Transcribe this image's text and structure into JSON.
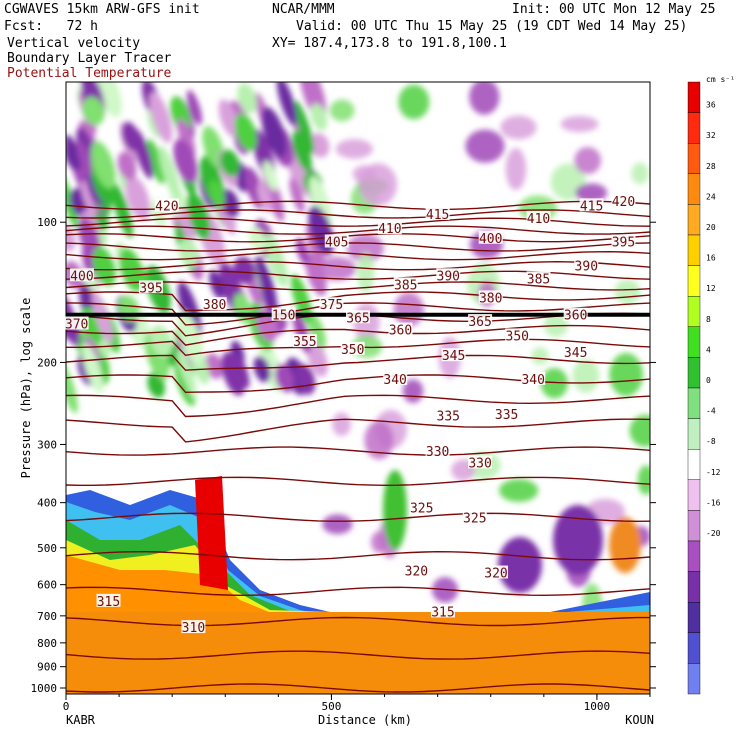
{
  "header": {
    "model": "CGWAVES 15km ARW-GFS init",
    "fcst": "Fcst:   72 h",
    "field1": "Vertical velocity",
    "field2": "Boundary Layer Tracer",
    "field3": "Potential Temperature",
    "org": "NCAR/MMM",
    "xy": "XY= 187.4,173.8 to 191.8,100.1",
    "init": "Init: 00 UTC Mon 12 May 25",
    "valid": "Valid: 00 UTC Thu 15 May 25 (19 CDT Wed 14 May 25)"
  },
  "colors": {
    "theta": "#7a0a0a",
    "terrain": "#f58c0a"
  },
  "chart_data": {
    "type": "heatmap",
    "xlabel": "Distance (km)",
    "ylabel": "Pressure (hPa), log scale",
    "x_ticks": [
      0,
      500,
      1000
    ],
    "x_range": [
      0,
      1100
    ],
    "y_scale": "log",
    "y_range": [
      1000,
      50
    ],
    "y_ticks": [
      100,
      200,
      300,
      400,
      500,
      600,
      700,
      800,
      900,
      1000
    ],
    "left_endpoint": "KABR",
    "right_endpoint": "KOUN",
    "colorbar": {
      "unit": "cm s⁻¹",
      "ticks": [
        36,
        32,
        28,
        24,
        20,
        16,
        12,
        8,
        4,
        0,
        -4,
        -8,
        -12,
        -16,
        -20
      ],
      "colors": [
        "#e80000",
        "#ff2a10",
        "#ff5a10",
        "#ff8a10",
        "#ffaa20",
        "#ffd000",
        "#ffff20",
        "#b0ff20",
        "#40e020",
        "#30c030",
        "#80e080",
        "#c0f0c0",
        "#ffffff",
        "#f0c0f0",
        "#d090d8",
        "#a850c0",
        "#7830a8",
        "#5030a0",
        "#5050d0",
        "#7080f0"
      ]
    },
    "theta_contours": [
      {
        "label": "420",
        "x": 190,
        "p": 92
      },
      {
        "label": "420",
        "x": 1050,
        "p": 90
      },
      {
        "label": "415",
        "x": 700,
        "p": 96
      },
      {
        "label": "415",
        "x": 990,
        "p": 92
      },
      {
        "label": "410",
        "x": 610,
        "p": 103
      },
      {
        "label": "410",
        "x": 890,
        "p": 98
      },
      {
        "label": "405",
        "x": 510,
        "p": 110
      },
      {
        "label": "400",
        "x": 30,
        "p": 130
      },
      {
        "label": "400",
        "x": 800,
        "p": 108
      },
      {
        "label": "395",
        "x": 160,
        "p": 138
      },
      {
        "label": "395",
        "x": 1050,
        "p": 110
      },
      {
        "label": "390",
        "x": 720,
        "p": 130
      },
      {
        "label": "390",
        "x": 980,
        "p": 124
      },
      {
        "label": "385",
        "x": 640,
        "p": 136
      },
      {
        "label": "385",
        "x": 890,
        "p": 132
      },
      {
        "label": "380",
        "x": 280,
        "p": 150
      },
      {
        "label": "380",
        "x": 800,
        "p": 145
      },
      {
        "label": "375",
        "x": 500,
        "p": 150
      },
      {
        "label": "370",
        "x": 20,
        "p": 165
      },
      {
        "label": "365",
        "x": 550,
        "p": 160
      },
      {
        "label": "365",
        "x": 780,
        "p": 163
      },
      {
        "label": "360",
        "x": 630,
        "p": 170
      },
      {
        "label": "360",
        "x": 960,
        "p": 158
      },
      {
        "label": "355",
        "x": 450,
        "p": 180
      },
      {
        "label": "350",
        "x": 540,
        "p": 187
      },
      {
        "label": "350",
        "x": 850,
        "p": 175
      },
      {
        "label": "345",
        "x": 730,
        "p": 193
      },
      {
        "label": "345",
        "x": 960,
        "p": 190
      },
      {
        "label": "340",
        "x": 620,
        "p": 217
      },
      {
        "label": "340",
        "x": 880,
        "p": 217
      },
      {
        "label": "335",
        "x": 720,
        "p": 260
      },
      {
        "label": "335",
        "x": 830,
        "p": 258
      },
      {
        "label": "330",
        "x": 700,
        "p": 310
      },
      {
        "label": "330",
        "x": 780,
        "p": 328
      },
      {
        "label": "325",
        "x": 670,
        "p": 410
      },
      {
        "label": "325",
        "x": 770,
        "p": 430
      },
      {
        "label": "320",
        "x": 660,
        "p": 560
      },
      {
        "label": "320",
        "x": 810,
        "p": 565
      },
      {
        "label": "315",
        "x": 80,
        "p": 650
      },
      {
        "label": "315",
        "x": 710,
        "p": 685
      },
      {
        "label": "310",
        "x": 240,
        "p": 740
      },
      {
        "label": "150",
        "x": 410,
        "p": 158
      }
    ]
  }
}
